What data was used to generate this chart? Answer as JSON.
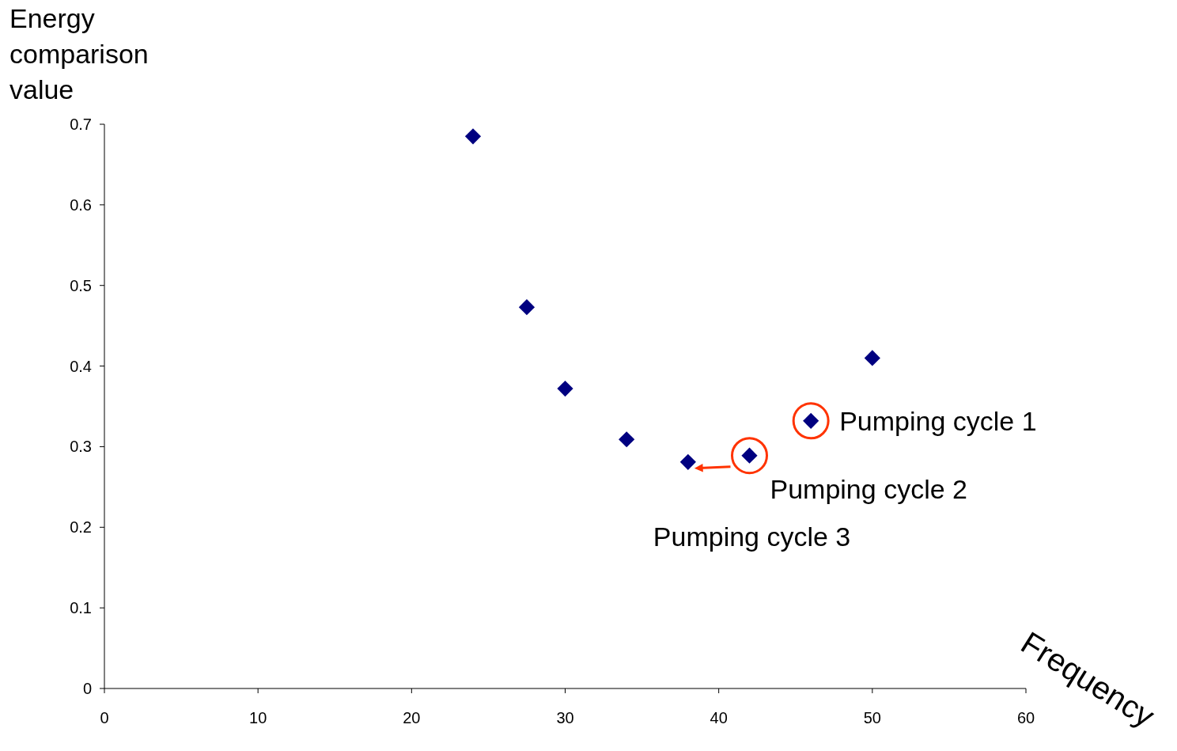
{
  "chart_data": {
    "type": "scatter",
    "xlabel": "Frequency",
    "ylabel": "Energy comparison value",
    "x": [
      24,
      27.5,
      30,
      34,
      38,
      42,
      46,
      50
    ],
    "series": [
      {
        "color": "#000080",
        "values": [
          0.685,
          0.473,
          0.372,
          0.309,
          0.281,
          0.289,
          0.332,
          0.41
        ]
      }
    ],
    "xlim": [
      0,
      60
    ],
    "xticks": [
      0,
      10,
      20,
      30,
      40,
      50,
      60
    ],
    "ylim": [
      0,
      0.7
    ],
    "yticks": [
      0,
      0.1,
      0.2,
      0.3,
      0.4,
      0.5,
      0.6,
      0.7
    ],
    "marker": "diamond",
    "grid": false,
    "annotations": [
      {
        "text": "Pumping cycle 1",
        "x": 46,
        "y": 0.332
      },
      {
        "text": "Pumping cycle 2",
        "x": 42,
        "y": 0.289
      },
      {
        "text": "Pumping cycle 3",
        "x": 38,
        "y": 0.281
      }
    ]
  }
}
